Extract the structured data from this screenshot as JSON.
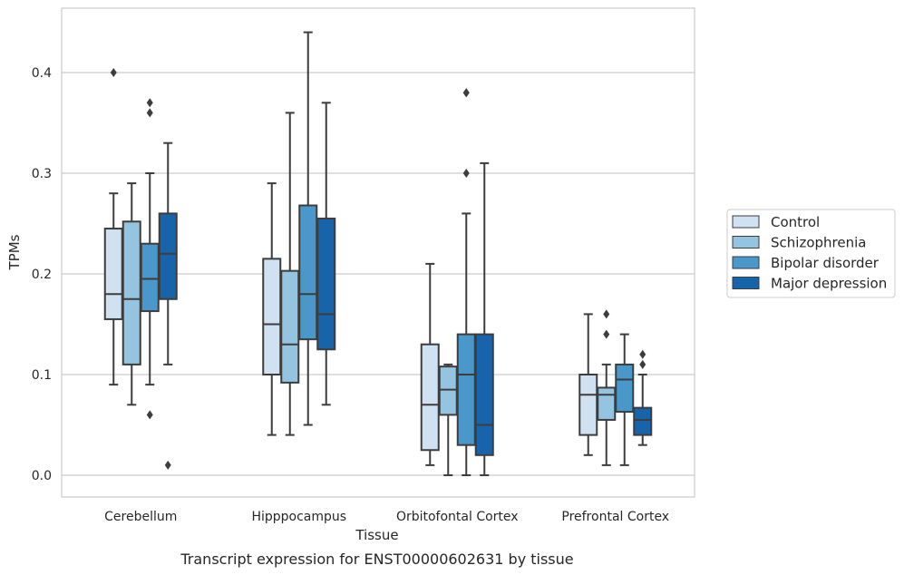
{
  "chart_data": {
    "type": "box",
    "title": "",
    "caption": "Transcript expression for ENST00000602631 by tissue",
    "xlabel": "Tissue",
    "ylabel": "TPMs",
    "ylim": [
      -0.021,
      0.463
    ],
    "yticks": [
      0.0,
      0.1,
      0.2,
      0.3,
      0.4
    ],
    "ytick_labels": [
      "0.0",
      "0.1",
      "0.2",
      "0.3",
      "0.4"
    ],
    "grid": "horizontal",
    "legend_placement": "right",
    "categories": [
      "Cerebellum",
      "Hipppocampus",
      "Orbitofontal Cortex",
      "Prefrontal Cortex"
    ],
    "series": [
      {
        "name": "Control",
        "color": "#d0e1f2",
        "boxes": [
          {
            "whisker_low": 0.09,
            "q1": 0.155,
            "median": 0.18,
            "q3": 0.245,
            "whisker_high": 0.28,
            "outliers": [
              0.4
            ]
          },
          {
            "whisker_low": 0.04,
            "q1": 0.1,
            "median": 0.15,
            "q3": 0.215,
            "whisker_high": 0.29,
            "outliers": []
          },
          {
            "whisker_low": 0.01,
            "q1": 0.025,
            "median": 0.07,
            "q3": 0.13,
            "whisker_high": 0.21,
            "outliers": []
          },
          {
            "whisker_low": 0.02,
            "q1": 0.04,
            "median": 0.08,
            "q3": 0.1,
            "whisker_high": 0.16,
            "outliers": []
          }
        ]
      },
      {
        "name": "Schizophrenia",
        "color": "#94c4df",
        "boxes": [
          {
            "whisker_low": 0.07,
            "q1": 0.11,
            "median": 0.175,
            "q3": 0.252,
            "whisker_high": 0.29,
            "outliers": []
          },
          {
            "whisker_low": 0.04,
            "q1": 0.092,
            "median": 0.13,
            "q3": 0.203,
            "whisker_high": 0.36,
            "outliers": []
          },
          {
            "whisker_low": 0.0,
            "q1": 0.06,
            "median": 0.085,
            "q3": 0.108,
            "whisker_high": 0.11,
            "outliers": []
          },
          {
            "whisker_low": 0.01,
            "q1": 0.055,
            "median": 0.08,
            "q3": 0.087,
            "whisker_high": 0.11,
            "outliers": [
              0.14,
              0.16
            ]
          }
        ]
      },
      {
        "name": "Bipolar disorder",
        "color": "#4a98c9",
        "boxes": [
          {
            "whisker_low": 0.09,
            "q1": 0.163,
            "median": 0.195,
            "q3": 0.23,
            "whisker_high": 0.3,
            "outliers": [
              0.06,
              0.36,
              0.37
            ]
          },
          {
            "whisker_low": 0.05,
            "q1": 0.135,
            "median": 0.18,
            "q3": 0.268,
            "whisker_high": 0.44,
            "outliers": []
          },
          {
            "whisker_low": 0.0,
            "q1": 0.03,
            "median": 0.1,
            "q3": 0.14,
            "whisker_high": 0.26,
            "outliers": [
              0.3,
              0.38,
              0.38
            ]
          },
          {
            "whisker_low": 0.01,
            "q1": 0.063,
            "median": 0.095,
            "q3": 0.11,
            "whisker_high": 0.14,
            "outliers": []
          }
        ]
      },
      {
        "name": "Major depression",
        "color": "#1764ab",
        "boxes": [
          {
            "whisker_low": 0.11,
            "q1": 0.175,
            "median": 0.22,
            "q3": 0.26,
            "whisker_high": 0.33,
            "outliers": [
              0.01
            ]
          },
          {
            "whisker_low": 0.07,
            "q1": 0.125,
            "median": 0.16,
            "q3": 0.255,
            "whisker_high": 0.37,
            "outliers": []
          },
          {
            "whisker_low": 0.0,
            "q1": 0.02,
            "median": 0.05,
            "q3": 0.14,
            "whisker_high": 0.31,
            "outliers": []
          },
          {
            "whisker_low": 0.03,
            "q1": 0.04,
            "median": 0.055,
            "q3": 0.067,
            "whisker_high": 0.1,
            "outliers": [
              0.11,
              0.12
            ]
          }
        ]
      }
    ]
  }
}
